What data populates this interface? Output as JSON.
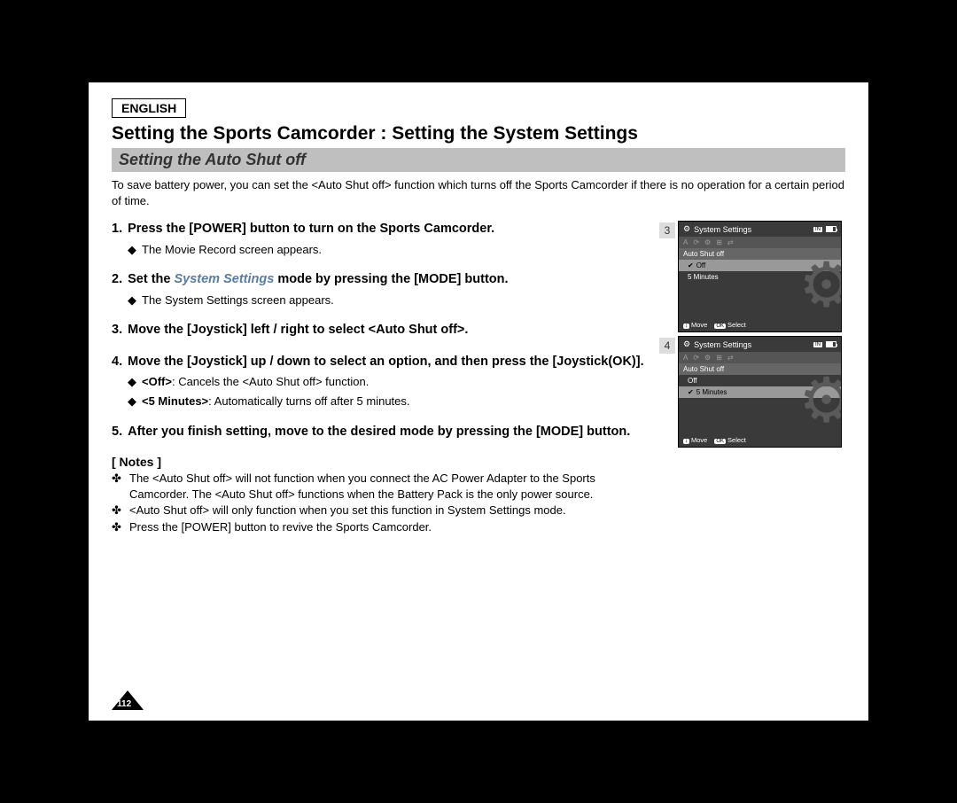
{
  "language": "ENGLISH",
  "main_title": "Setting the Sports Camcorder : Setting the System Settings",
  "subtitle": "Setting the Auto Shut off",
  "intro": "To save battery power, you can set the <Auto Shut off> function which turns off the Sports Camcorder if there is no operation for a certain period of time.",
  "steps": [
    {
      "head": "Press the [POWER] button to turn on the Sports Camcorder.",
      "subs": [
        {
          "text": "The Movie Record screen appears."
        }
      ]
    },
    {
      "head_prefix": "Set the ",
      "head_styled": "System Settings",
      "head_suffix": " mode by pressing the [MODE] button.",
      "subs": [
        {
          "text": "The System Settings screen appears."
        }
      ]
    },
    {
      "head": "Move the [Joystick] left / right to select <Auto Shut off>."
    },
    {
      "head": "Move the [Joystick] up / down to select an option, and then press the [Joystick(OK)].",
      "subs": [
        {
          "bold": "<Off>",
          "text": ": Cancels the <Auto Shut off> function."
        },
        {
          "bold": "<5 Minutes>",
          "text": ": Automatically turns off after 5 minutes."
        }
      ]
    },
    {
      "head": "After you finish setting, move to the desired mode by pressing the [MODE] button."
    }
  ],
  "notes_title": "[ Notes ]",
  "notes": [
    "The <Auto Shut off> will not function when you connect the AC Power Adapter to the Sports Camcorder. The <Auto Shut off> functions when the Battery Pack is the only power source.",
    "<Auto Shut off> will only function when you set this function in System Settings mode.",
    "Press the [POWER] button to revive the Sports Camcorder."
  ],
  "page_number": "112",
  "screens": [
    {
      "num": "3",
      "title": "System Settings",
      "storage": "IN",
      "mode_icons": [
        "A",
        "⟳",
        "⚙",
        "⊞",
        "⇄"
      ],
      "section": "Auto Shut off",
      "options": [
        {
          "label": "Off",
          "checked": true,
          "selected": true
        },
        {
          "label": "5 Minutes",
          "checked": false,
          "selected": false
        }
      ],
      "bottom_left_key": "↕",
      "bottom_left": "Move",
      "bottom_right_key": "OK",
      "bottom_right": "Select"
    },
    {
      "num": "4",
      "title": "System Settings",
      "storage": "IN",
      "mode_icons": [
        "A",
        "⟳",
        "⚙",
        "⊞",
        "⇄"
      ],
      "section": "Auto Shut off",
      "options": [
        {
          "label": "Off",
          "checked": false,
          "selected": false
        },
        {
          "label": "5 Minutes",
          "checked": true,
          "selected": true
        }
      ],
      "bottom_left_key": "↕",
      "bottom_left": "Move",
      "bottom_right_key": "OK",
      "bottom_right": "Select"
    }
  ],
  "colors": {
    "page_bg": "#ffffff",
    "body_bg": "#000000",
    "subtitle_bg": "#bfbfbf",
    "system_settings_text": "#5a7ca3",
    "screen_bg": "#3a3a3a"
  }
}
